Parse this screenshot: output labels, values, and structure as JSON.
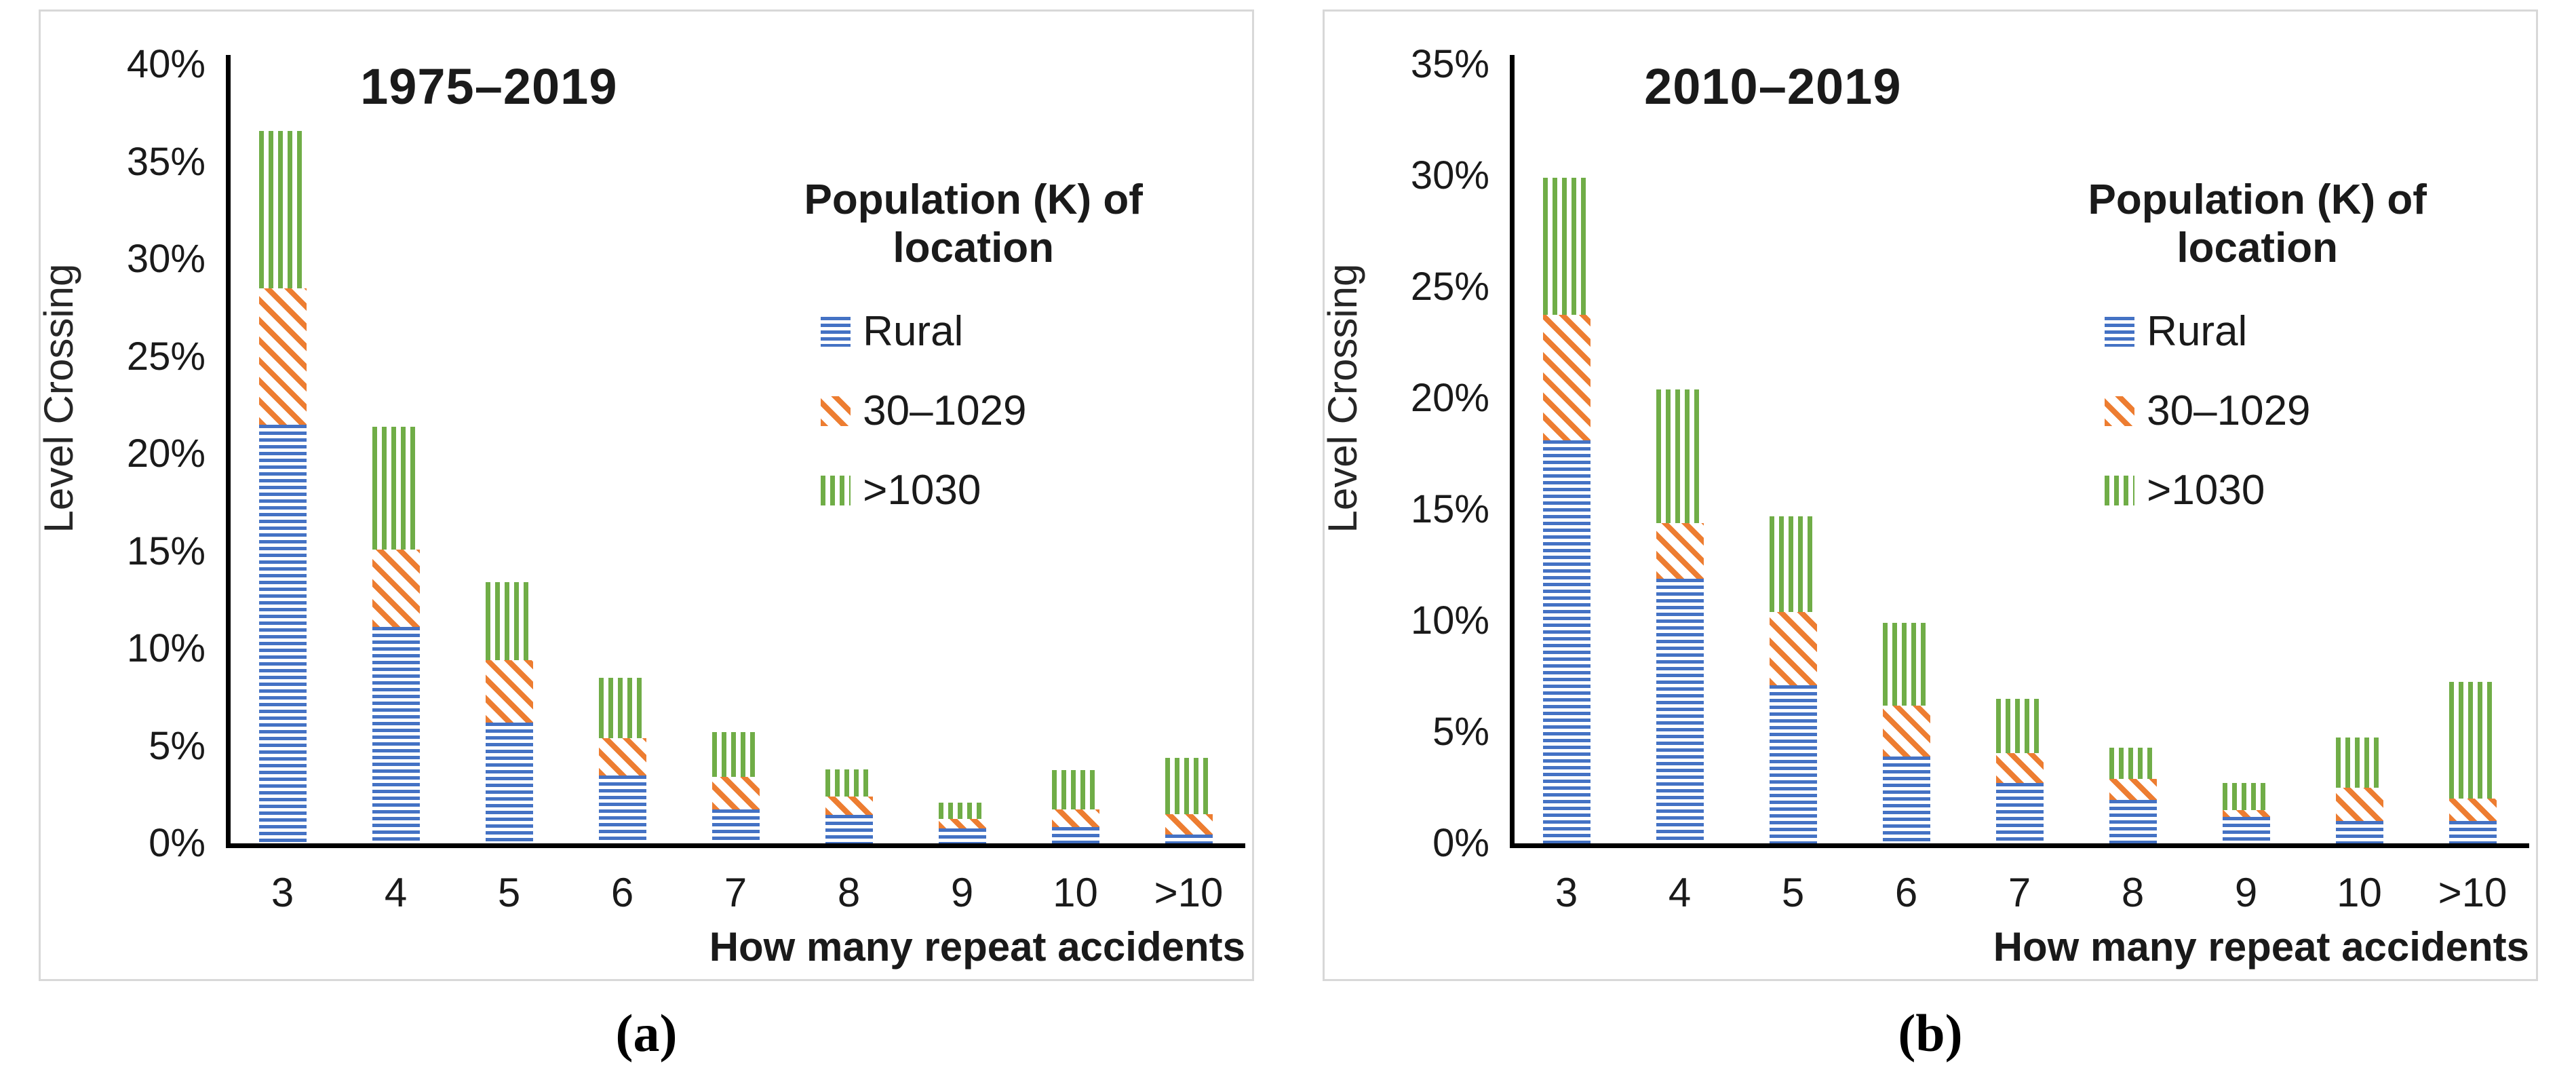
{
  "figure": {
    "caption_a": "(a)",
    "caption_b": "(b)"
  },
  "legend": {
    "title": "Population (K) of location",
    "items": [
      {
        "label": "Rural",
        "pattern": "horizontal-stripes",
        "color": "#4472C4"
      },
      {
        "label": "30–1029",
        "pattern": "diagonal-stripes",
        "color": "#ED7D31"
      },
      {
        "label": ">1030",
        "pattern": "vertical-stripes",
        "color": "#70AD47"
      }
    ]
  },
  "chart_data": [
    {
      "type": "bar",
      "stacked": true,
      "title": "1975–2019",
      "caption": "(a)",
      "xlabel": "How many repeat accidents",
      "ylabel": "Level Crossing",
      "ylim": [
        0,
        40
      ],
      "ytick_step": 5,
      "ytick_suffix": "%",
      "grid": false,
      "legend_position": "upper right inside",
      "categories": [
        "3",
        "4",
        "5",
        "6",
        "7",
        "8",
        "9",
        "10",
        ">10"
      ],
      "series": [
        {
          "name": "Rural",
          "values": [
            21.5,
            11.1,
            6.2,
            3.5,
            1.75,
            1.45,
            0.75,
            0.85,
            0.45
          ]
        },
        {
          "name": "30–1029",
          "values": [
            7.0,
            4.0,
            3.2,
            1.9,
            1.65,
            0.95,
            0.5,
            0.9,
            1.05
          ]
        },
        {
          "name": ">1030",
          "values": [
            8.1,
            6.3,
            4.0,
            3.1,
            2.3,
            1.4,
            0.85,
            2.0,
            2.9
          ]
        }
      ]
    },
    {
      "type": "bar",
      "stacked": true,
      "title": "2010–2019",
      "caption": "(b)",
      "xlabel": "How many repeat accidents",
      "ylabel": "Level Crossing",
      "ylim": [
        0,
        35
      ],
      "ytick_step": 5,
      "ytick_suffix": "%",
      "grid": false,
      "legend_position": "upper right inside",
      "categories": [
        "3",
        "4",
        "5",
        "6",
        "7",
        "8",
        "9",
        "10",
        ">10"
      ],
      "series": [
        {
          "name": "Rural",
          "values": [
            18.1,
            11.9,
            7.1,
            3.9,
            2.7,
            1.95,
            1.2,
            1.0,
            1.0
          ]
        },
        {
          "name": "30–1029",
          "values": [
            5.65,
            2.5,
            3.3,
            2.3,
            1.35,
            0.95,
            0.3,
            1.5,
            1.0
          ]
        },
        {
          "name": ">1030",
          "values": [
            6.15,
            6.0,
            4.3,
            3.7,
            2.45,
            1.4,
            1.2,
            2.25,
            5.25
          ]
        }
      ]
    }
  ]
}
